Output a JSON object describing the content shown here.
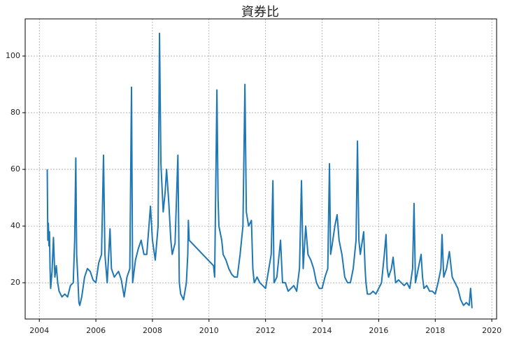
{
  "chart_data": {
    "type": "line",
    "title": "資券比",
    "x": [
      2004.28,
      2004.3,
      2004.32,
      2004.34,
      2004.36,
      2004.38,
      2004.4,
      2004.45,
      2004.5,
      2004.55,
      2004.6,
      2004.65,
      2004.7,
      2004.8,
      2004.9,
      2005.0,
      2005.1,
      2005.2,
      2005.25,
      2005.29,
      2005.32,
      2005.36,
      2005.4,
      2005.43,
      2005.5,
      2005.6,
      2005.7,
      2005.8,
      2005.9,
      2006.0,
      2006.1,
      2006.2,
      2006.27,
      2006.32,
      2006.4,
      2006.5,
      2006.55,
      2006.65,
      2006.8,
      2006.9,
      2007.0,
      2007.1,
      2007.2,
      2007.26,
      2007.3,
      2007.4,
      2007.5,
      2007.6,
      2007.7,
      2007.8,
      2007.93,
      2008.0,
      2008.1,
      2008.2,
      2008.25,
      2008.3,
      2008.38,
      2008.45,
      2008.5,
      2008.58,
      2008.65,
      2008.7,
      2008.8,
      2008.9,
      2008.95,
      2009.0,
      2009.1,
      2009.2,
      2009.25,
      2009.27,
      2009.3,
      2010.16,
      2010.2,
      2010.28,
      2010.32,
      2010.35,
      2010.45,
      2010.5,
      2010.6,
      2010.7,
      2010.8,
      2010.9,
      2011.0,
      2011.1,
      2011.2,
      2011.27,
      2011.32,
      2011.4,
      2011.5,
      2011.55,
      2011.6,
      2011.7,
      2011.8,
      2011.9,
      2012.0,
      2012.1,
      2012.2,
      2012.26,
      2012.3,
      2012.4,
      2012.53,
      2012.6,
      2012.7,
      2012.8,
      2012.9,
      2013.0,
      2013.1,
      2013.2,
      2013.27,
      2013.33,
      2013.42,
      2013.5,
      2013.6,
      2013.7,
      2013.8,
      2013.9,
      2014.0,
      2014.1,
      2014.2,
      2014.26,
      2014.3,
      2014.35,
      2014.45,
      2014.53,
      2014.6,
      2014.7,
      2014.8,
      2014.9,
      2015.0,
      2015.1,
      2015.2,
      2015.25,
      2015.3,
      2015.35,
      2015.47,
      2015.52,
      2015.55,
      2015.6,
      2015.7,
      2015.8,
      2015.9,
      2016.0,
      2016.1,
      2016.2,
      2016.26,
      2016.3,
      2016.35,
      2016.45,
      2016.51,
      2016.6,
      2016.7,
      2016.8,
      2016.9,
      2017.0,
      2017.1,
      2017.2,
      2017.25,
      2017.3,
      2017.4,
      2017.5,
      2017.55,
      2017.6,
      2017.7,
      2017.8,
      2017.9,
      2018.0,
      2018.1,
      2018.2,
      2018.24,
      2018.3,
      2018.4,
      2018.5,
      2018.6,
      2018.7,
      2018.8,
      2018.9,
      2019.0,
      2019.1,
      2019.2,
      2019.25,
      2019.28,
      2019.3
    ],
    "values": [
      60,
      35,
      41,
      33,
      38,
      25,
      18,
      24,
      36,
      22,
      26,
      20,
      17,
      15,
      16,
      15,
      19,
      20,
      35,
      64,
      30,
      22,
      13,
      12,
      15,
      22,
      25,
      24,
      21,
      20,
      27,
      30,
      65,
      30,
      20,
      39,
      25,
      22,
      24,
      21,
      15,
      22,
      25,
      89,
      20,
      28,
      32,
      35,
      30,
      30,
      47,
      35,
      28,
      40,
      108,
      62,
      45,
      52,
      60,
      48,
      35,
      30,
      34,
      65,
      20,
      16,
      14,
      20,
      30,
      42,
      35,
      26,
      22,
      88,
      50,
      40,
      35,
      30,
      28,
      25,
      23,
      22,
      22,
      30,
      40,
      90,
      45,
      40,
      42,
      25,
      20,
      22,
      20,
      19,
      18,
      24,
      30,
      56,
      20,
      22,
      35,
      20,
      20,
      17,
      18,
      19,
      17,
      25,
      56,
      25,
      40,
      30,
      28,
      25,
      20,
      18,
      18,
      22,
      25,
      62,
      30,
      33,
      40,
      44,
      35,
      30,
      22,
      20,
      20,
      25,
      35,
      70,
      35,
      30,
      38,
      25,
      20,
      16,
      16,
      17,
      16,
      18,
      20,
      30,
      37,
      25,
      22,
      25,
      29,
      20,
      21,
      20,
      19,
      20,
      18,
      25,
      48,
      20,
      25,
      30,
      22,
      18,
      19,
      17,
      17,
      16,
      20,
      25,
      37,
      22,
      25,
      31,
      22,
      20,
      18,
      14,
      12,
      13,
      12,
      18,
      14,
      11
    ],
    "color": "#1f77b4",
    "xlim": [
      2003.5,
      2020.17
    ],
    "xticks": [
      2004,
      2006,
      2008,
      2010,
      2012,
      2014,
      2016,
      2018,
      2020
    ],
    "ylim": [
      7.2,
      113.1
    ],
    "yticks": [
      20,
      40,
      60,
      80,
      100
    ],
    "grid": true
  }
}
